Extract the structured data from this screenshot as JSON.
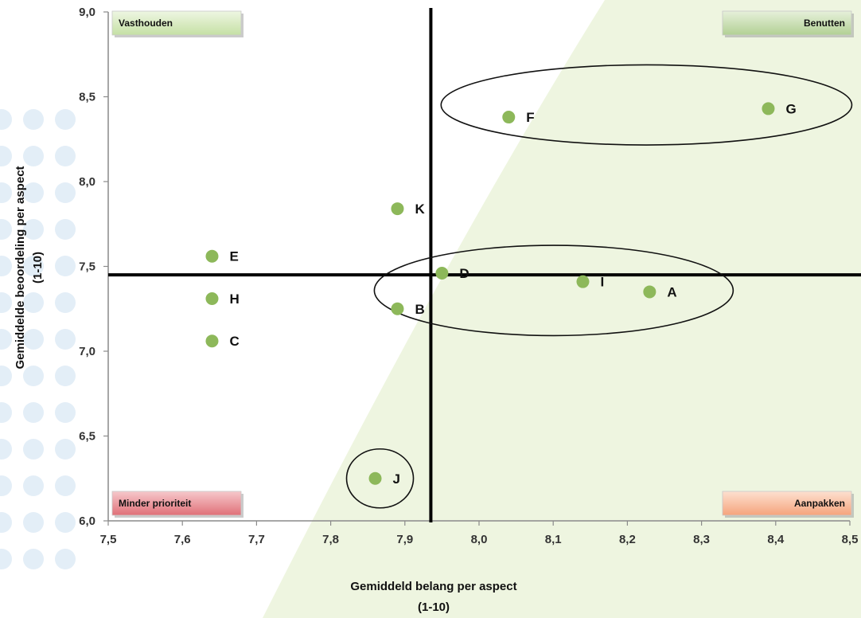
{
  "chart_data": {
    "type": "scatter",
    "xlabel": [
      "Gemiddeld belang per aspect",
      "(1-10)"
    ],
    "ylabel": [
      "Gemiddelde beoordeling per aspect",
      "(1-10)"
    ],
    "xlim": [
      7.5,
      8.5
    ],
    "ylim": [
      6.0,
      9.0
    ],
    "xticks": [
      7.5,
      7.6,
      7.7,
      7.8,
      7.9,
      8.0,
      8.1,
      8.2,
      8.3,
      8.4,
      8.5
    ],
    "yticks": [
      6.0,
      6.5,
      7.0,
      7.5,
      8.0,
      8.5,
      9.0
    ],
    "xtick_labels": [
      "7,5",
      "7,6",
      "7,7",
      "7,8",
      "7,9",
      "8,0",
      "8,1",
      "8,2",
      "8,3",
      "8,4",
      "8,5"
    ],
    "ytick_labels": [
      "6,0",
      "6,5",
      "7,0",
      "7,5",
      "8,0",
      "8,5",
      "9,0"
    ],
    "points": [
      {
        "label": "A",
        "x": 8.23,
        "y": 7.35
      },
      {
        "label": "B",
        "x": 7.89,
        "y": 7.25
      },
      {
        "label": "C",
        "x": 7.64,
        "y": 7.06
      },
      {
        "label": "D",
        "x": 7.95,
        "y": 7.46
      },
      {
        "label": "E",
        "x": 7.64,
        "y": 7.56
      },
      {
        "label": "F",
        "x": 8.04,
        "y": 8.38
      },
      {
        "label": "G",
        "x": 8.39,
        "y": 8.43
      },
      {
        "label": "H",
        "x": 7.64,
        "y": 7.31
      },
      {
        "label": "I",
        "x": 8.14,
        "y": 7.41
      },
      {
        "label": "J",
        "x": 7.86,
        "y": 6.25
      },
      {
        "label": "K",
        "x": 7.89,
        "y": 7.84
      }
    ],
    "reference_lines": {
      "x": 7.935,
      "y": 7.45
    },
    "quadrants": [
      {
        "label": "Vasthouden",
        "position": "top-left",
        "color": "#d4e8b8"
      },
      {
        "label": "Benutten",
        "position": "top-right",
        "color": "#c0d8a8"
      },
      {
        "label": "Minder prioriteit",
        "position": "bottom-left",
        "color": "#e88a90"
      },
      {
        "label": "Aanpakken",
        "position": "bottom-right",
        "color": "#f7b89a"
      }
    ],
    "highlight_groups": [
      {
        "members": [
          "F",
          "G"
        ]
      },
      {
        "members": [
          "D",
          "I",
          "A"
        ]
      },
      {
        "members": [
          "J"
        ]
      }
    ],
    "point_color": "#8db85a",
    "shade_color": "#eef5e0",
    "grid": false
  }
}
